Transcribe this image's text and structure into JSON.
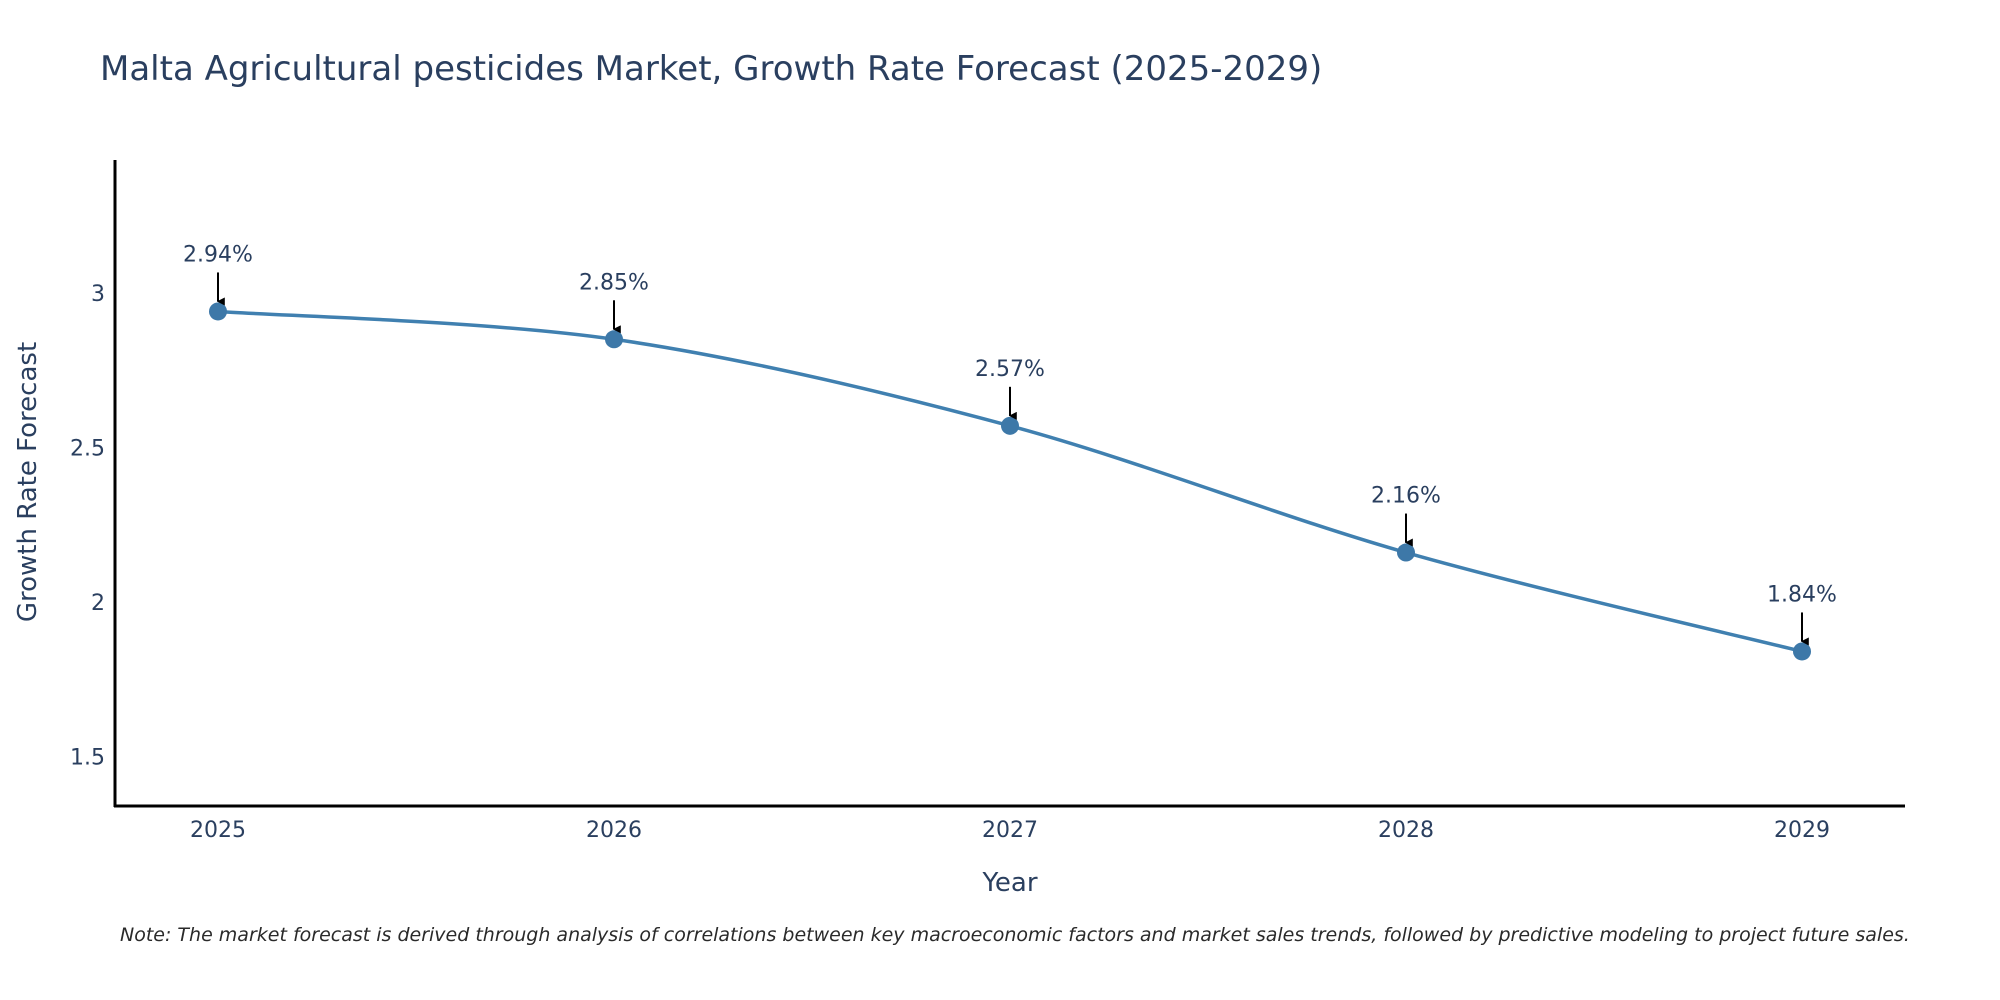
{
  "chart_data": {
    "type": "line",
    "title": "Malta Agricultural pesticides Market, Growth Rate Forecast (2025-2029)",
    "xlabel": "Year",
    "ylabel": "Growth Rate Forecast",
    "categories": [
      "2025",
      "2026",
      "2027",
      "2028",
      "2029"
    ],
    "values": [
      2.94,
      2.85,
      2.57,
      2.16,
      1.84
    ],
    "data_labels": [
      "2.94%",
      "2.85%",
      "2.57%",
      "2.16%",
      "1.84%"
    ],
    "yticks": [
      1.5,
      2,
      2.5,
      3
    ],
    "ytick_labels": [
      "1.5",
      "2",
      "2.5",
      "3"
    ],
    "ylim": [
      1.34,
      3.43
    ],
    "grid": false,
    "line_color": "#4080b0",
    "marker_color": "#3d78a8",
    "axis_color": "#000000",
    "annotation_arrow_color": "#000000",
    "note": "Note: The market forecast is derived through analysis of correlations between key macroeconomic factors and market sales trends, followed by predictive modeling to project future sales."
  }
}
